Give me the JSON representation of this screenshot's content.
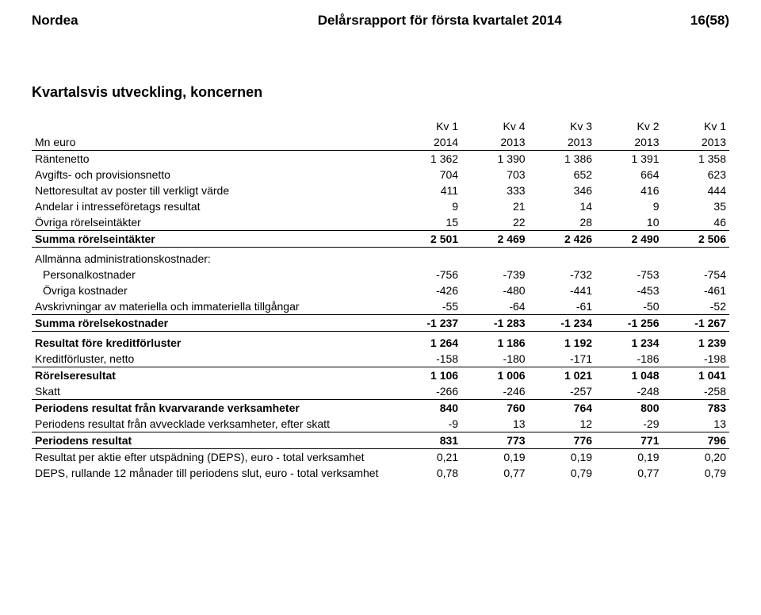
{
  "header": {
    "company": "Nordea",
    "report_title": "Delårsrapport för första kvartalet 2014",
    "page_num": "16(58)"
  },
  "table": {
    "title": "Kvartalsvis utveckling, koncernen",
    "unit_label": "Mn euro",
    "col_headers_top": [
      "Kv 1",
      "Kv 4",
      "Kv 3",
      "Kv 2",
      "Kv 1"
    ],
    "col_headers_bottom": [
      "2014",
      "2013",
      "2013",
      "2013",
      "2013"
    ],
    "rows": [
      {
        "label": "Räntenetto",
        "values": [
          "1 362",
          "1 390",
          "1 386",
          "1 391",
          "1 358"
        ],
        "style": ""
      },
      {
        "label": "Avgifts- och provisionsnetto",
        "values": [
          "704",
          "703",
          "652",
          "664",
          "623"
        ],
        "style": ""
      },
      {
        "label": "Nettoresultat av poster till verkligt värde",
        "values": [
          "411",
          "333",
          "346",
          "416",
          "444"
        ],
        "style": ""
      },
      {
        "label": "Andelar i intresseföretags resultat",
        "values": [
          "9",
          "21",
          "14",
          "9",
          "35"
        ],
        "style": ""
      },
      {
        "label": "Övriga rörelseintäkter",
        "values": [
          "15",
          "22",
          "28",
          "10",
          "46"
        ],
        "style": "bd-bottom"
      },
      {
        "label": "Summa rörelseintäkter",
        "values": [
          "2 501",
          "2 469",
          "2 426",
          "2 490",
          "2 506"
        ],
        "style": "bold bd-bottom"
      },
      {
        "label": "Allmänna administrationskostnader:",
        "values": [
          "",
          "",
          "",
          "",
          ""
        ],
        "style": "section-gap"
      },
      {
        "label": "Personalkostnader",
        "values": [
          "-756",
          "-739",
          "-732",
          "-753",
          "-754"
        ],
        "style": "indent"
      },
      {
        "label": "Övriga kostnader",
        "values": [
          "-426",
          "-480",
          "-441",
          "-453",
          "-461"
        ],
        "style": "indent"
      },
      {
        "label": "Avskrivningar av materiella och immateriella tillgångar",
        "values": [
          "-55",
          "-64",
          "-61",
          "-50",
          "-52"
        ],
        "style": "bd-bottom"
      },
      {
        "label": "Summa rörelsekostnader",
        "values": [
          "-1 237",
          "-1 283",
          "-1 234",
          "-1 256",
          "-1 267"
        ],
        "style": "bold bd-bottom"
      },
      {
        "label": "Resultat före kreditförluster",
        "values": [
          "1 264",
          "1 186",
          "1 192",
          "1 234",
          "1 239"
        ],
        "style": "bold section-gap"
      },
      {
        "label": "Kreditförluster, netto",
        "values": [
          "-158",
          "-180",
          "-171",
          "-186",
          "-198"
        ],
        "style": "bd-bottom"
      },
      {
        "label": "Rörelseresultat",
        "values": [
          "1 106",
          "1 006",
          "1 021",
          "1 048",
          "1 041"
        ],
        "style": "bold"
      },
      {
        "label": "Skatt",
        "values": [
          "-266",
          "-246",
          "-257",
          "-248",
          "-258"
        ],
        "style": "bd-bottom"
      },
      {
        "label": "Periodens resultat från kvarvarande verksamheter",
        "values": [
          "840",
          "760",
          "764",
          "800",
          "783"
        ],
        "style": "bold"
      },
      {
        "label": "Periodens resultat från avvecklade verksamheter, efter skatt",
        "values": [
          "-9",
          "13",
          "12",
          "-29",
          "13"
        ],
        "style": "bd-bottom"
      },
      {
        "label": "Periodens resultat",
        "values": [
          "831",
          "773",
          "776",
          "771",
          "796"
        ],
        "style": "bold bd-bottom"
      },
      {
        "label": "Resultat per aktie efter utspädning (DEPS), euro - total verksamhet",
        "values": [
          "0,21",
          "0,19",
          "0,19",
          "0,19",
          "0,20"
        ],
        "style": ""
      },
      {
        "label": "DEPS, rullande 12 månader till periodens slut, euro - total verksamhet",
        "values": [
          "0,78",
          "0,77",
          "0,79",
          "0,77",
          "0,79"
        ],
        "style": ""
      }
    ]
  }
}
